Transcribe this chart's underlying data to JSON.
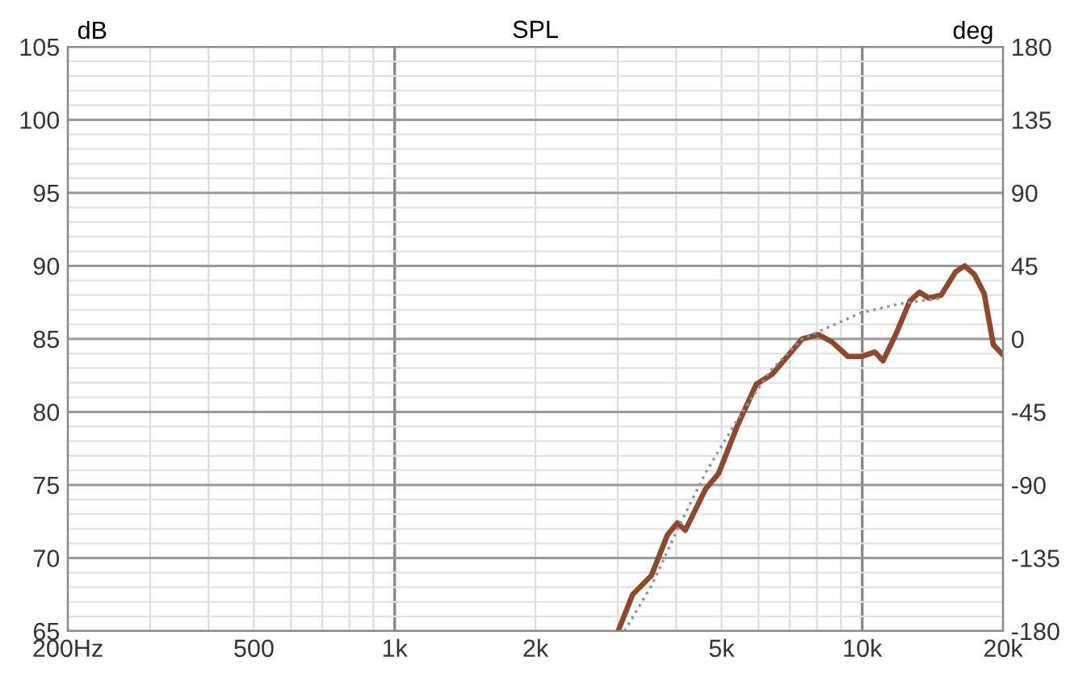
{
  "chart_data": {
    "type": "line",
    "title": "SPL",
    "ylabel": "dB",
    "y2label": "deg",
    "log": "x",
    "grid": true,
    "legend": false,
    "xlim": [
      200,
      20000
    ],
    "ylim": [
      65,
      105
    ],
    "y2lim": [
      -180,
      180
    ],
    "xticks": [
      {
        "value": 200,
        "label": "200Hz"
      },
      {
        "value": 300,
        "label": null
      },
      {
        "value": 400,
        "label": null
      },
      500,
      {
        "value": 600,
        "label": null
      },
      {
        "value": 700,
        "label": null
      },
      {
        "value": 800,
        "label": null
      },
      {
        "value": 900,
        "label": null
      },
      {
        "value": 1000,
        "label": "1k"
      },
      {
        "value": 2000,
        "label": "2k"
      },
      {
        "value": 3000,
        "label": null
      },
      {
        "value": 4000,
        "label": null
      },
      {
        "value": 5000,
        "label": "5k"
      },
      {
        "value": 6000,
        "label": null
      },
      {
        "value": 7000,
        "label": null
      },
      {
        "value": 8000,
        "label": null
      },
      {
        "value": 9000,
        "label": null
      },
      {
        "value": 10000,
        "label": "10k"
      },
      {
        "value": 20000,
        "label": "20k"
      }
    ],
    "yticks": [
      65,
      {
        "value": 66,
        "label": null
      },
      {
        "value": 67,
        "label": null
      },
      {
        "value": 68,
        "label": null
      },
      {
        "value": 69,
        "label": null
      },
      70,
      {
        "value": 71,
        "label": null
      },
      {
        "value": 72,
        "label": null
      },
      {
        "value": 73,
        "label": null
      },
      {
        "value": 74,
        "label": null
      },
      75,
      {
        "value": 76,
        "label": null
      },
      {
        "value": 77,
        "label": null
      },
      {
        "value": 78,
        "label": null
      },
      {
        "value": 79,
        "label": null
      },
      80,
      {
        "value": 81,
        "label": null
      },
      {
        "value": 82,
        "label": null
      },
      {
        "value": 83,
        "label": null
      },
      {
        "value": 84,
        "label": null
      },
      85,
      {
        "value": 86,
        "label": null
      },
      {
        "value": 87,
        "label": null
      },
      {
        "value": 88,
        "label": null
      },
      {
        "value": 89,
        "label": null
      },
      90,
      {
        "value": 91,
        "label": null
      },
      {
        "value": 92,
        "label": null
      },
      {
        "value": 93,
        "label": null
      },
      {
        "value": 94,
        "label": null
      },
      95,
      {
        "value": 96,
        "label": null
      },
      {
        "value": 97,
        "label": null
      },
      {
        "value": 98,
        "label": null
      },
      {
        "value": 99,
        "label": null
      },
      100,
      {
        "value": 101,
        "label": null
      },
      {
        "value": 102,
        "label": null
      },
      {
        "value": 103,
        "label": null
      },
      {
        "value": 104,
        "label": null
      },
      105
    ],
    "y2ticks": [
      -180,
      -135,
      -90,
      -45,
      0,
      45,
      90,
      135,
      180
    ],
    "series": [
      {
        "color": "#8b4a2e",
        "line_style": "solid",
        "x": [
          3006,
          3228,
          3540,
          3834,
          4022,
          4184,
          4618,
          4932,
          5414,
          5937,
          6430,
          7441,
          8060,
          8610,
          9320,
          9960,
          10640,
          11080,
          11830,
          12640,
          13260,
          13870,
          14750,
          15840,
          16560,
          17380,
          18230,
          19070,
          20000
        ],
        "values": [
          65,
          67.5,
          68.8,
          71.6,
          72.4,
          71.9,
          74.7,
          75.8,
          79.1,
          81.9,
          82.6,
          85.0,
          85.3,
          84.8,
          83.8,
          83.8,
          84.1,
          83.5,
          85.4,
          87.6,
          88.2,
          87.8,
          88.0,
          89.6,
          90.0,
          89.4,
          88.1,
          84.6,
          83.9
        ]
      },
      {
        "color": "#8a96a6",
        "line_style": "dotted",
        "x": [
          3102,
          3540,
          4045,
          4618,
          5414,
          6350,
          7441,
          8330,
          9960,
          11990,
          14800
        ],
        "values": [
          65,
          68.1,
          72.1,
          75.8,
          79.5,
          82.8,
          85.0,
          85.7,
          86.8,
          87.4,
          87.8
        ]
      }
    ]
  }
}
